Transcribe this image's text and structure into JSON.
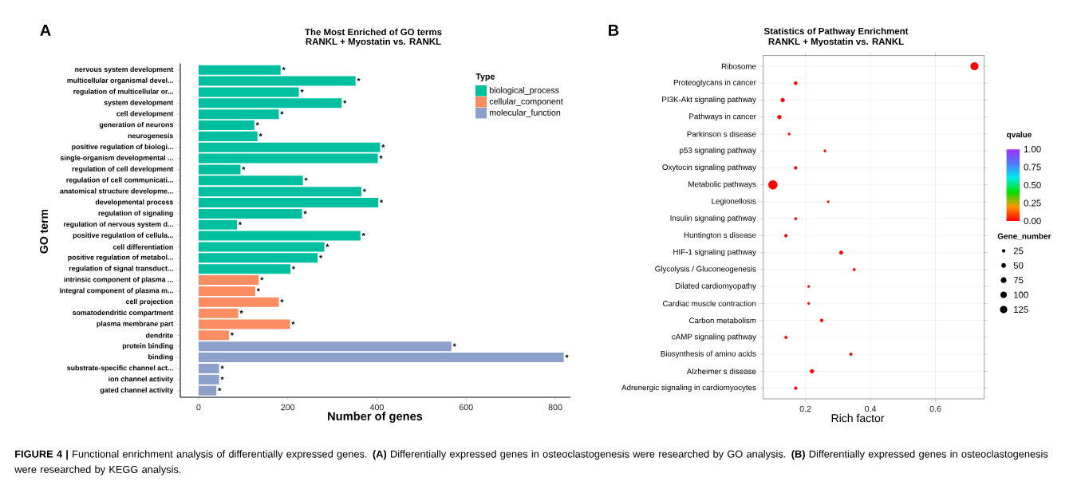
{
  "chart_data": [
    {
      "type": "bar",
      "orientation": "horizontal",
      "title": "The Most Enriched of GO terms",
      "subtitle": "RANKL + Myostatin vs. RANKL",
      "xlabel": "Number of genes",
      "ylabel": "GO term",
      "legend_title": "Type",
      "legend": "top right",
      "categories": [
        "nervous system development",
        "multicellular organismal devel...",
        "regulation of multicellular or...",
        "system development",
        "cell development",
        "generation of neurons",
        "neurogenesis",
        "positive regulation of biologi...",
        "single-organism developmental ...",
        "regulation of cell development",
        "regulation of cell communicati...",
        "anatomical structure developme...",
        "developmental process",
        "regulation of signaling",
        "regulation of nervous system d...",
        "positive regulation of cellula...",
        "cell differentiation",
        "positive regulation of metabol...",
        "regulation of signal transduct...",
        "intrinsic component of plasma ...",
        "integral component of plasma m...",
        "cell projection",
        "somatodendritic compartment",
        "plasma membrane part",
        "dendrite",
        "protein binding",
        "binding",
        "substrate-specific channel act...",
        "ion channel activity",
        "gated channel activity"
      ],
      "series": [
        {
          "name": "biological_process",
          "color": "#00bfa0",
          "values": [
            184,
            352,
            225,
            321,
            180,
            125,
            132,
            407,
            402,
            94,
            234,
            365,
            403,
            232,
            86,
            363,
            282,
            267,
            206,
            null,
            null,
            null,
            null,
            null,
            null,
            null,
            null,
            null,
            null,
            null
          ],
          "value_labels": [
            "*",
            "*",
            "*",
            "*",
            "*",
            "*",
            "*",
            "*",
            "*",
            "*",
            "*",
            "*",
            "*",
            "*",
            "*",
            "*",
            "*",
            "*",
            "*",
            null,
            null,
            null,
            null,
            null,
            null,
            null,
            null,
            null,
            null,
            null
          ]
        },
        {
          "name": "cellular_component",
          "color": "#fc8d62",
          "values": [
            null,
            null,
            null,
            null,
            null,
            null,
            null,
            null,
            null,
            null,
            null,
            null,
            null,
            null,
            null,
            null,
            null,
            null,
            null,
            135,
            127,
            180,
            89,
            205,
            68,
            null,
            null,
            null,
            null,
            null
          ],
          "value_labels": [
            null,
            null,
            null,
            null,
            null,
            null,
            null,
            null,
            null,
            null,
            null,
            null,
            null,
            null,
            null,
            null,
            null,
            null,
            null,
            "*",
            "*",
            "*",
            "*",
            "*",
            "*",
            null,
            null,
            null,
            null,
            null
          ]
        },
        {
          "name": "molecular_function",
          "color": "#8da0cb",
          "values": [
            null,
            null,
            null,
            null,
            null,
            null,
            null,
            null,
            null,
            null,
            null,
            null,
            null,
            null,
            null,
            null,
            null,
            null,
            null,
            null,
            null,
            null,
            null,
            null,
            null,
            567,
            819,
            46,
            46,
            40
          ],
          "value_labels": [
            null,
            null,
            null,
            null,
            null,
            null,
            null,
            null,
            null,
            null,
            null,
            null,
            null,
            null,
            null,
            null,
            null,
            null,
            null,
            null,
            null,
            null,
            null,
            null,
            null,
            "*",
            "*",
            "*",
            "*",
            "*"
          ]
        }
      ],
      "xlim": [
        -41,
        834
      ],
      "xticks": [
        0,
        200,
        400,
        600,
        800
      ],
      "annotations": [
        "A",
        "**FIGURE 4 |** Functional enrichment analysis of differentially expressed genes. **(A)** Differentially expressed genes in osteoclastogenesis were researched by GO analysis. **(B)** Differentially expressed genes in osteoclastogenesis were researched by KEGG analysis."
      ]
    },
    {
      "type": "bubble",
      "orientation": "horizontal",
      "title": "Statistics of Pathway Enrichment",
      "subtitle": "RANKL + Myostatin vs. RANKL",
      "xlabel": "Rich factor",
      "clabel": "qvalue",
      "legend_title": "Gene_number",
      "grid": true,
      "categories": [
        "Ribosome",
        "Proteoglycans in cancer",
        "PI3K-Akt signaling pathway",
        "Pathways in cancer",
        "Parkinson s disease",
        "p53 signaling pathway",
        "Oxytocin signaling pathway",
        "Metabolic pathways",
        "Legionellosis",
        "Insulin signaling pathway",
        "Huntington s disease",
        "HIF-1 signaling pathway",
        "Glycolysis / Gluconeogenesis",
        "Dilated cardiomyopathy",
        "Cardiac muscle contraction",
        "Carbon metabolism",
        "cAMP signaling pathway",
        "Biosynthesis of amino acids",
        "Alzheimer s disease",
        "Adrenergic signaling in cardiomyocytes"
      ],
      "values": [
        0.72,
        0.17,
        0.13,
        0.12,
        0.15,
        0.26,
        0.17,
        0.1,
        0.27,
        0.17,
        0.14,
        0.31,
        0.35,
        0.21,
        0.21,
        0.25,
        0.14,
        0.34,
        0.22,
        0.17
      ],
      "sizes": [
        135,
        25,
        35,
        35,
        12,
        12,
        20,
        180,
        10,
        15,
        20,
        30,
        15,
        12,
        12,
        22,
        18,
        18,
        35,
        20
      ],
      "cvalues": [
        0,
        0,
        0,
        0,
        0,
        0,
        0,
        0,
        0,
        0,
        0,
        0,
        0,
        0,
        0,
        0,
        0,
        0,
        0,
        0
      ],
      "size_legend": [
        25,
        50,
        75,
        100,
        125
      ],
      "clim": [
        0,
        1
      ],
      "cticks": [
        {
          "value": 0,
          "label": "0.00"
        },
        {
          "value": 0.25,
          "label": "0.25"
        },
        {
          "value": 0.5,
          "label": "0.50"
        },
        {
          "value": 0.75,
          "label": "0.75"
        },
        {
          "value": 1,
          "label": "1.00"
        }
      ],
      "xlim": [
        0.07,
        0.75
      ],
      "xticks": [
        0.2,
        0.4,
        0.6
      ],
      "annotations": [
        "B"
      ]
    }
  ]
}
